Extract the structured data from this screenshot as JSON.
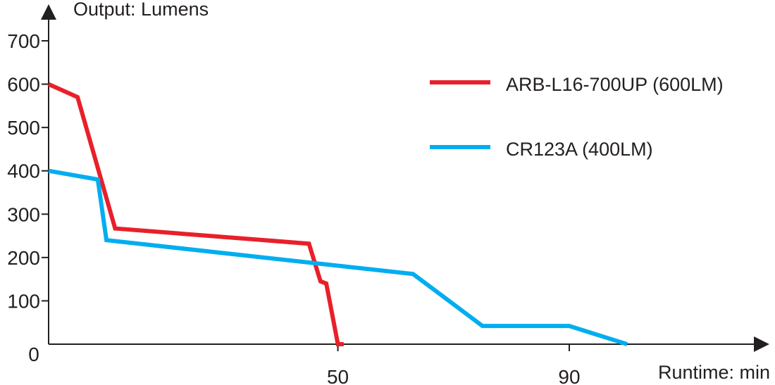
{
  "chart_data": {
    "type": "line",
    "ylabel": "Output: Lumens",
    "xlabel": "Runtime: min",
    "xlim": [
      0,
      139
    ],
    "ylim": [
      0,
      700
    ],
    "x_ticks": [
      {
        "value": 50,
        "label": "50"
      },
      {
        "value": 90,
        "label": "90"
      }
    ],
    "y_ticks": [
      {
        "value": 0,
        "label": "0"
      },
      {
        "value": 100,
        "label": "100"
      },
      {
        "value": 200,
        "label": "200"
      },
      {
        "value": 300,
        "label": "300"
      },
      {
        "value": 400,
        "label": "400"
      },
      {
        "value": 500,
        "label": "500"
      },
      {
        "value": 600,
        "label": "600"
      },
      {
        "value": 700,
        "label": "700"
      }
    ],
    "grid": false,
    "legend_position": "top-right",
    "series": [
      {
        "name": "ARB-L16-700UP (600LM)",
        "color": "#e8202a",
        "points": [
          [
            0,
            600
          ],
          [
            5,
            570
          ],
          [
            11.5,
            267
          ],
          [
            45,
            232
          ],
          [
            47,
            145
          ],
          [
            48,
            140
          ],
          [
            50,
            0
          ],
          [
            51,
            0
          ]
        ]
      },
      {
        "name": "CR123A (400LM)",
        "color": "#00aeef",
        "points": [
          [
            0,
            400
          ],
          [
            8.5,
            380
          ],
          [
            10,
            240
          ],
          [
            63,
            162
          ],
          [
            75,
            42
          ],
          [
            90,
            42
          ],
          [
            100,
            0
          ]
        ]
      }
    ]
  }
}
